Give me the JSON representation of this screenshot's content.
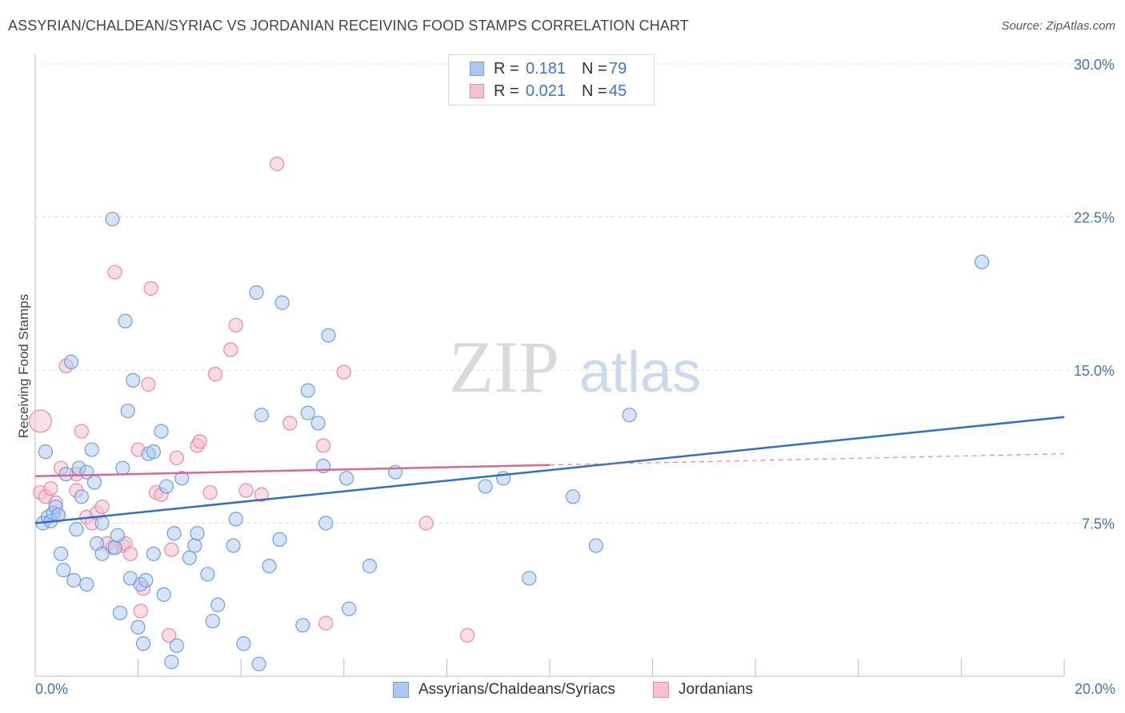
{
  "title": "ASSYRIAN/CHALDEAN/SYRIAC VS JORDANIAN RECEIVING FOOD STAMPS CORRELATION CHART",
  "source": "Source: ZipAtlas.com",
  "watermark": {
    "zip": "ZIP",
    "atlas": "atlas"
  },
  "legend_top": {
    "rows": [
      {
        "r_label": "R =",
        "r_value": "0.181",
        "n_label": "N =",
        "n_value": "79"
      },
      {
        "r_label": "R =",
        "r_value": "0.021",
        "n_label": "N =",
        "n_value": "45"
      }
    ]
  },
  "legend_bottom": [
    "Assyrians/Chaldeans/Syriacs",
    "Jordanians"
  ],
  "colors": {
    "blue_fill": "#a9c8f2",
    "blue_stroke": "#6f9fdc",
    "blue_line": "#2d6fcc",
    "pink_fill": "#f7bfd0",
    "pink_stroke": "#e88aa7",
    "pink_line": "#e0658f",
    "axis_text": "#3b74c9",
    "grid": "#dddddd"
  },
  "chart_data": {
    "type": "scatter",
    "title": "ASSYRIAN/CHALDEAN/SYRIAC VS JORDANIAN RECEIVING FOOD STAMPS CORRELATION CHART",
    "xlabel": "",
    "ylabel": "Receiving Food Stamps",
    "xlim": [
      0,
      20
    ],
    "ylim": [
      0,
      30
    ],
    "x_tick_labels": [
      "0.0%",
      "20.0%"
    ],
    "y_ticks": [
      7.5,
      15.0,
      22.5,
      30.0
    ],
    "y_tick_labels": [
      "7.5%",
      "15.0%",
      "22.5%",
      "30.0%"
    ],
    "grid": "horizontal dashed",
    "legend_position": "top-center",
    "series": [
      {
        "name": "Assyrians/Chaldeans/Syriacs",
        "color": "#a9c8f2",
        "trend": {
          "x": [
            0,
            20
          ],
          "y": [
            7.5,
            12.7
          ]
        },
        "points": [
          [
            0.15,
            7.5
          ],
          [
            0.2,
            11.0
          ],
          [
            0.25,
            7.8
          ],
          [
            0.3,
            7.6
          ],
          [
            0.35,
            8.0
          ],
          [
            0.4,
            8.3
          ],
          [
            0.45,
            7.9
          ],
          [
            0.5,
            6.0
          ],
          [
            0.55,
            5.2
          ],
          [
            0.6,
            9.9
          ],
          [
            0.7,
            15.4
          ],
          [
            0.75,
            4.7
          ],
          [
            0.8,
            7.2
          ],
          [
            0.85,
            10.2
          ],
          [
            0.9,
            8.8
          ],
          [
            1.0,
            4.5
          ],
          [
            1.1,
            11.1
          ],
          [
            1.15,
            9.5
          ],
          [
            1.2,
            6.5
          ],
          [
            1.3,
            7.5
          ],
          [
            1.3,
            6.0
          ],
          [
            1.5,
            22.4
          ],
          [
            1.55,
            6.3
          ],
          [
            1.6,
            6.9
          ],
          [
            1.65,
            3.1
          ],
          [
            1.7,
            10.2
          ],
          [
            1.75,
            17.4
          ],
          [
            1.8,
            13.0
          ],
          [
            1.85,
            4.8
          ],
          [
            1.9,
            14.5
          ],
          [
            2.0,
            2.4
          ],
          [
            2.05,
            4.5
          ],
          [
            2.1,
            1.6
          ],
          [
            2.15,
            4.7
          ],
          [
            2.2,
            10.9
          ],
          [
            2.3,
            11.0
          ],
          [
            2.45,
            12.0
          ],
          [
            2.5,
            4.0
          ],
          [
            2.55,
            9.3
          ],
          [
            2.65,
            0.7
          ],
          [
            2.7,
            7.0
          ],
          [
            2.75,
            1.5
          ],
          [
            2.85,
            9.7
          ],
          [
            3.0,
            5.8
          ],
          [
            3.1,
            6.4
          ],
          [
            3.15,
            7.0
          ],
          [
            3.35,
            5.0
          ],
          [
            3.45,
            2.7
          ],
          [
            3.55,
            3.5
          ],
          [
            3.85,
            6.4
          ],
          [
            3.9,
            7.7
          ],
          [
            4.05,
            1.6
          ],
          [
            4.3,
            18.8
          ],
          [
            4.35,
            0.6
          ],
          [
            4.4,
            12.8
          ],
          [
            4.55,
            5.4
          ],
          [
            4.75,
            6.7
          ],
          [
            4.8,
            18.3
          ],
          [
            5.2,
            2.5
          ],
          [
            5.3,
            14.0
          ],
          [
            5.3,
            12.9
          ],
          [
            5.5,
            12.4
          ],
          [
            5.6,
            10.3
          ],
          [
            5.65,
            7.5
          ],
          [
            5.7,
            16.7
          ],
          [
            6.05,
            9.7
          ],
          [
            6.1,
            3.3
          ],
          [
            6.5,
            5.4
          ],
          [
            7.0,
            10.0
          ],
          [
            8.75,
            9.3
          ],
          [
            9.1,
            9.7
          ],
          [
            9.6,
            4.8
          ],
          [
            10.45,
            8.8
          ],
          [
            10.9,
            6.4
          ],
          [
            11.55,
            12.8
          ],
          [
            18.4,
            20.3
          ],
          [
            0.1,
            12.5
          ],
          [
            1.0,
            10.0
          ],
          [
            2.3,
            6.0
          ]
        ]
      },
      {
        "name": "Jordanians",
        "color": "#f7bfd0",
        "trend": {
          "x": [
            0,
            10
          ],
          "y": [
            9.8,
            10.35
          ]
        },
        "trend_extension": {
          "x": [
            10,
            20
          ],
          "y": [
            10.35,
            10.9
          ]
        },
        "points": [
          [
            0.1,
            9.0
          ],
          [
            0.2,
            8.8
          ],
          [
            0.3,
            9.2
          ],
          [
            0.4,
            8.5
          ],
          [
            0.45,
            7.9
          ],
          [
            0.5,
            10.2
          ],
          [
            0.6,
            15.2
          ],
          [
            0.8,
            9.1
          ],
          [
            0.8,
            9.9
          ],
          [
            0.9,
            12.0
          ],
          [
            1.0,
            7.8
          ],
          [
            1.1,
            7.5
          ],
          [
            1.2,
            8.0
          ],
          [
            1.3,
            8.3
          ],
          [
            1.4,
            6.5
          ],
          [
            1.5,
            6.3
          ],
          [
            1.55,
            19.8
          ],
          [
            1.7,
            6.4
          ],
          [
            1.75,
            6.5
          ],
          [
            1.85,
            6.0
          ],
          [
            2.0,
            11.1
          ],
          [
            2.05,
            3.2
          ],
          [
            2.1,
            4.3
          ],
          [
            2.2,
            14.3
          ],
          [
            2.25,
            19.0
          ],
          [
            2.35,
            9.0
          ],
          [
            2.45,
            8.9
          ],
          [
            2.6,
            2.0
          ],
          [
            2.65,
            6.2
          ],
          [
            2.75,
            10.7
          ],
          [
            3.15,
            11.3
          ],
          [
            3.2,
            11.5
          ],
          [
            3.4,
            9.0
          ],
          [
            3.5,
            14.8
          ],
          [
            3.8,
            16.0
          ],
          [
            3.9,
            17.2
          ],
          [
            4.1,
            9.1
          ],
          [
            4.4,
            8.9
          ],
          [
            4.7,
            25.1
          ],
          [
            4.95,
            12.4
          ],
          [
            5.6,
            11.3
          ],
          [
            5.65,
            2.6
          ],
          [
            6.0,
            14.9
          ],
          [
            7.6,
            7.5
          ],
          [
            8.4,
            2.0
          ]
        ]
      }
    ]
  }
}
